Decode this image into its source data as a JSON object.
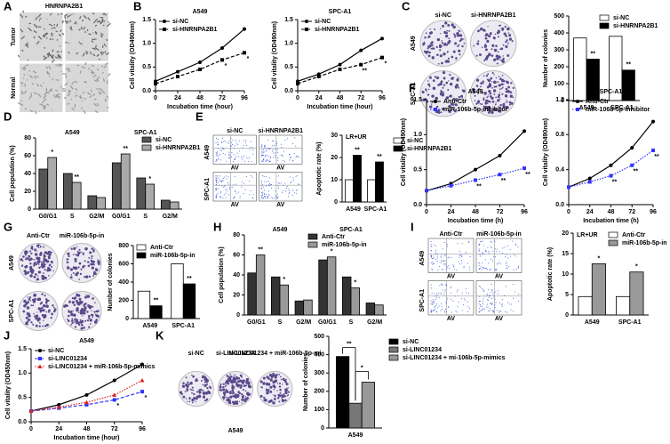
{
  "chart_data": [
    {
      "panel": "A",
      "type": "image",
      "style": "tissue",
      "title": "HNRNPA2B1",
      "row_labels": [
        "Tumor",
        "Normal"
      ]
    },
    {
      "panel": "B",
      "type": "line",
      "title": "A549",
      "xlabel": "Incubation time (hour)",
      "ylabel": "Cell vitality (OD490nm)",
      "x": [
        0,
        24,
        48,
        72,
        96
      ],
      "xlim": [
        0,
        96
      ],
      "xticks": [
        0,
        24,
        48,
        72,
        96
      ],
      "ylim": [
        0,
        1.5
      ],
      "yticks": [
        {
          "value": 0,
          "label": "0.0"
        },
        0.5,
        {
          "value": 1,
          "label": "1.0"
        },
        1.5
      ],
      "legend": "upper left",
      "series": [
        {
          "name": "si-NC",
          "color": "#000000",
          "line_style": "solid",
          "marker": "circle",
          "values": [
            0.2,
            0.4,
            0.6,
            0.9,
            1.3
          ]
        },
        {
          "name": "si-HNRNPA2B1",
          "color": "#000000",
          "line_style": "dashed",
          "marker": "square",
          "values": [
            0.15,
            0.3,
            0.45,
            0.65,
            0.8
          ],
          "stars": [
            null,
            null,
            null,
            "*",
            "*"
          ]
        }
      ]
    },
    {
      "type": "line",
      "title": "SPC-A1",
      "xlabel": "Incubation time (hour)",
      "ylabel": "Cell vitality (OD490nm)",
      "x": [
        0,
        24,
        48,
        72,
        96
      ],
      "xlim": [
        0,
        96
      ],
      "xticks": [
        0,
        24,
        48,
        72,
        96
      ],
      "ylim": [
        0,
        1.5
      ],
      "yticks": [
        {
          "value": 0,
          "label": "0.0"
        },
        0.5,
        {
          "value": 1,
          "label": "1.0"
        },
        1.5
      ],
      "legend": "upper left",
      "series": [
        {
          "name": "si-NC",
          "color": "#000000",
          "line_style": "solid",
          "marker": "circle",
          "values": [
            0.2,
            0.35,
            0.55,
            0.85,
            1.1
          ]
        },
        {
          "name": "si-HNRNPA2B1",
          "color": "#000000",
          "line_style": "dashed",
          "marker": "square",
          "values": [
            0.15,
            0.3,
            0.45,
            0.55,
            0.7
          ],
          "stars": [
            null,
            null,
            null,
            "**",
            "*"
          ]
        }
      ]
    },
    {
      "panel": "C",
      "type": "image",
      "style": "colony",
      "col_labels": [
        "si-NC",
        "si-HNRNPA2B1"
      ],
      "row_labels": [
        "A549",
        "SPC-A1"
      ]
    },
    {
      "type": "bar",
      "ylabel": "Number of colonies",
      "categories": [
        "A549",
        "SPC-A1"
      ],
      "ylim": [
        0,
        500
      ],
      "yticks": [
        0,
        100,
        200,
        300,
        400,
        500
      ],
      "legend": "upper right",
      "series": [
        {
          "name": "si-NC",
          "color": "#ffffff",
          "values": [
            370,
            380
          ]
        },
        {
          "name": "si-HNRNPA2B1",
          "color": "#000000",
          "values": [
            245,
            180
          ],
          "stars": [
            "**",
            "**"
          ]
        }
      ]
    },
    {
      "panel": "D",
      "type": "bar",
      "ylabel": "Cell population (%)",
      "categories": [
        "G0/G1",
        "S",
        "G2/M",
        "G0/G1",
        "S",
        "G2/M"
      ],
      "group_labels": [
        "A549",
        "SPC-A1"
      ],
      "ylim": [
        0,
        80
      ],
      "yticks": [
        0,
        20,
        40,
        60,
        80
      ],
      "legend": "upper right",
      "series": [
        {
          "name": "si-NC",
          "color": "#555555",
          "values": [
            45,
            40,
            15,
            52,
            35,
            10
          ]
        },
        {
          "name": "si-HNRNPA2B1",
          "color": "#aaaaaa",
          "values": [
            58,
            30,
            13,
            62,
            28,
            8
          ],
          "stars": [
            "*",
            "**",
            null,
            "**",
            "*",
            null
          ]
        }
      ]
    },
    {
      "panel": "E",
      "type": "image",
      "style": "flow",
      "col_labels": [
        "si-NC",
        "si-HNRNPA2B1"
      ],
      "row_labels": [
        "A549",
        "SPC-A1"
      ],
      "cell_axis_label": "AV"
    },
    {
      "type": "bar",
      "title": "LR+UR",
      "ylabel": "Apoptotic rate (%)",
      "categories": [
        "A549",
        "SPC-A1"
      ],
      "ylim": [
        0,
        30
      ],
      "yticks": [
        0,
        10,
        20,
        30
      ],
      "legend": "right",
      "series": [
        {
          "name": "si-NC",
          "color": "#ffffff",
          "values": [
            10,
            10
          ]
        },
        {
          "name": "si-HNRNPA2B1",
          "color": "#000000",
          "values": [
            21,
            18
          ],
          "stars": [
            "**",
            "**"
          ]
        }
      ]
    },
    {
      "panel": "F",
      "type": "line",
      "title": "A549",
      "xlabel": "Incubation time (h)",
      "ylabel": "Cell vitality (OD490nm)",
      "x": [
        0,
        24,
        48,
        72,
        96
      ],
      "xlim": [
        0,
        96
      ],
      "xticks": [
        0,
        24,
        48,
        72,
        96
      ],
      "ylim": [
        0,
        1.5
      ],
      "yticks": [
        {
          "value": 0,
          "label": "0.0"
        },
        0.5,
        {
          "value": 1,
          "label": "1.0"
        },
        1.5
      ],
      "legend": "upper left",
      "series": [
        {
          "name": "Anti-Ctr",
          "color": "#000000",
          "line_style": "solid",
          "marker": "circle",
          "values": [
            0.2,
            0.3,
            0.5,
            0.7,
            1.05
          ]
        },
        {
          "name": "miR-106b-5p-inhibitor",
          "color": "#3333ff",
          "line_style": "dotted",
          "marker": "square",
          "values": [
            0.2,
            0.27,
            0.35,
            0.43,
            0.52
          ],
          "stars": [
            null,
            null,
            "**",
            "**",
            "**"
          ]
        }
      ]
    },
    {
      "type": "line",
      "title": "SPC-A1",
      "xlabel": "Incubation time (h)",
      "ylabel": "Cell vitality (OD490nm)",
      "x": [
        0,
        24,
        48,
        72,
        96
      ],
      "xlim": [
        0,
        96
      ],
      "xticks": [
        0,
        24,
        48,
        72,
        96
      ],
      "ylim": [
        0,
        1.2
      ],
      "yticks": [
        {
          "value": 0,
          "label": "0.0"
        },
        0.4,
        0.8,
        1.2
      ],
      "legend": "upper left",
      "series": [
        {
          "name": "Anti-Ctr",
          "color": "#000000",
          "line_style": "solid",
          "marker": "circle",
          "values": [
            0.2,
            0.3,
            0.45,
            0.65,
            0.95
          ]
        },
        {
          "name": "miR-106b-5p-inhibitor",
          "color": "#3333ff",
          "line_style": "dotted",
          "marker": "square",
          "values": [
            0.2,
            0.26,
            0.33,
            0.45,
            0.62
          ],
          "stars": [
            null,
            null,
            "**",
            "**",
            "**"
          ]
        }
      ]
    },
    {
      "panel": "G",
      "type": "image",
      "style": "colony",
      "col_labels": [
        "Anti-Ctr",
        "miR-106b-5p-in"
      ],
      "row_labels": [
        "A549",
        "SPC-A1"
      ]
    },
    {
      "type": "bar",
      "ylabel": "Number of colonies",
      "categories": [
        "A549",
        "SPC-A1"
      ],
      "ylim": [
        0,
        800
      ],
      "yticks": [
        0,
        200,
        400,
        600,
        800
      ],
      "legend": "upper left",
      "series": [
        {
          "name": "Anti-Ctr",
          "color": "#ffffff",
          "values": [
            300,
            600
          ]
        },
        {
          "name": "miR-106b-5p-in",
          "color": "#000000",
          "values": [
            140,
            380
          ],
          "stars": [
            "**",
            "**"
          ]
        }
      ]
    },
    {
      "panel": "H",
      "type": "bar",
      "ylabel": "Cell population (%)",
      "categories": [
        "G0/G1",
        "S",
        "G2/M",
        "G0/G1",
        "S",
        "G2/M"
      ],
      "group_labels": [
        "A549",
        "SPC-A1"
      ],
      "ylim": [
        0,
        80
      ],
      "yticks": [
        0,
        20,
        40,
        60,
        80
      ],
      "legend": "upper center",
      "series": [
        {
          "name": "Anti-Ctr",
          "color": "#333333",
          "values": [
            42,
            38,
            14,
            55,
            38,
            12
          ]
        },
        {
          "name": "miR-106b-5p-in",
          "color": "#999999",
          "values": [
            60,
            30,
            15,
            58,
            27,
            10
          ],
          "stars": [
            "**",
            "*",
            null,
            "*",
            "*",
            null
          ]
        }
      ]
    },
    {
      "panel": "I",
      "type": "image",
      "style": "flow",
      "col_labels": [
        "Anti-Ctr",
        "miR-106b-5p-in"
      ],
      "row_labels": [
        "A549",
        "SPC-A1"
      ],
      "cell_axis_label": "AV"
    },
    {
      "type": "bar",
      "title": "LR+UR",
      "ylabel": "Apoptotic rate (%)",
      "categories": [
        "A549",
        "SPC-A1"
      ],
      "ylim": [
        0,
        20
      ],
      "yticks": [
        0,
        5,
        10,
        15,
        20
      ],
      "legend": "upper right",
      "series": [
        {
          "name": "Anti-Ctr",
          "color": "#ffffff",
          "values": [
            4.5,
            4.5
          ]
        },
        {
          "name": "miR-106b-5p-in",
          "color": "#999999",
          "values": [
            12.5,
            10.5
          ],
          "stars": [
            "*",
            "*"
          ]
        }
      ]
    },
    {
      "panel": "J",
      "type": "line",
      "title": "A549",
      "xlabel": "Incubation time (hour)",
      "ylabel": "Cell vitality (OD450nm)",
      "x": [
        0,
        24,
        48,
        72,
        96
      ],
      "xlim": [
        0,
        96
      ],
      "xticks": [
        0,
        24,
        48,
        72,
        96
      ],
      "ylim": [
        0,
        1.5
      ],
      "yticks": [
        {
          "value": 0,
          "label": "0.0"
        },
        0.5,
        {
          "value": 1,
          "label": "1.0"
        },
        1.5
      ],
      "legend": "upper left",
      "series": [
        {
          "name": "si-NC",
          "color": "#000000",
          "line_style": "solid",
          "marker": "circle",
          "values": [
            0.22,
            0.35,
            0.55,
            0.85,
            1.18
          ]
        },
        {
          "name": "si-LINC01234",
          "color": "#3333ff",
          "line_style": "dashed",
          "marker": "square",
          "values": [
            0.22,
            0.28,
            0.35,
            0.45,
            0.62
          ],
          "stars": [
            null,
            null,
            null,
            "*",
            "*"
          ]
        },
        {
          "name": "si-LINC01234 + miR-106b-5p-mimics",
          "color": "#dd2222",
          "line_style": "dotted",
          "marker": "triangle",
          "values": [
            0.22,
            0.3,
            0.4,
            0.55,
            0.85
          ]
        }
      ]
    },
    {
      "panel": "K",
      "type": "image",
      "style": "colony",
      "col_labels": [
        "si-NC",
        "si-LINC01234",
        "si-LINC01234 + miR-106b-5p-mi"
      ],
      "caption": "A549"
    },
    {
      "type": "bar",
      "ylabel": "Number of colonies",
      "categories": [
        "A549"
      ],
      "ylim": [
        0,
        500
      ],
      "yticks": [
        0,
        100,
        200,
        300,
        400,
        500
      ],
      "legend": "right",
      "brackets": [
        {
          "from": 0,
          "to": 1,
          "text": "**"
        },
        {
          "from": 1,
          "to": 2,
          "text": "*"
        }
      ],
      "series": [
        {
          "name": "si-NC",
          "color": "#000000",
          "values": [
            390
          ]
        },
        {
          "name": "si-LINC01234",
          "color": "#777777",
          "values": [
            135
          ]
        },
        {
          "name": "si-LINC01234 + mi-106b-5p-mimics",
          "color": "#999999",
          "values": [
            250
          ]
        }
      ]
    }
  ]
}
